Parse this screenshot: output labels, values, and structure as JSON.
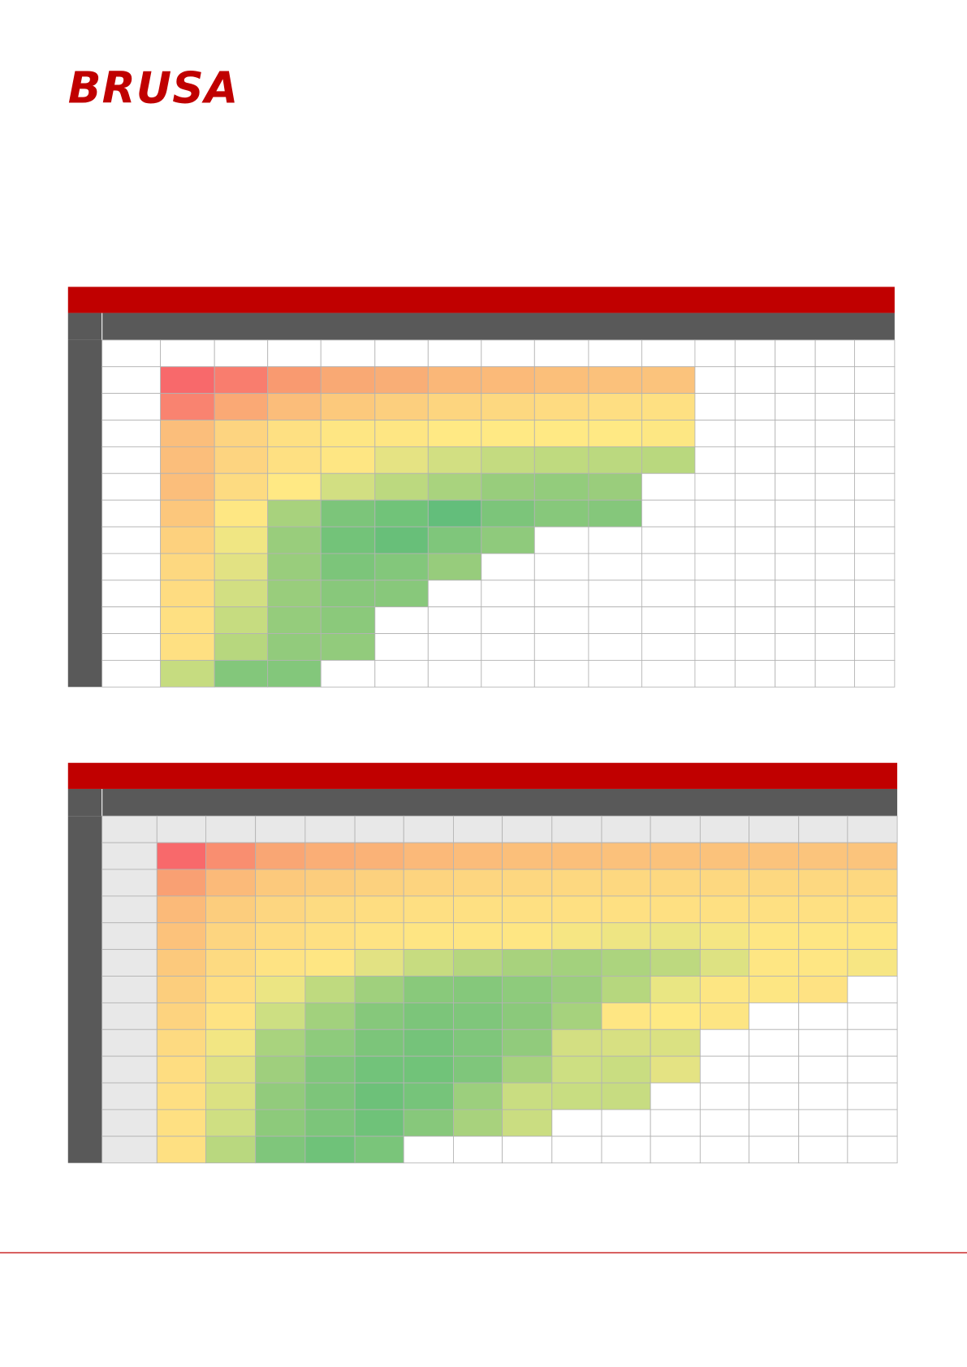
{
  "header": {
    "logo": "BRUSA"
  }
}
